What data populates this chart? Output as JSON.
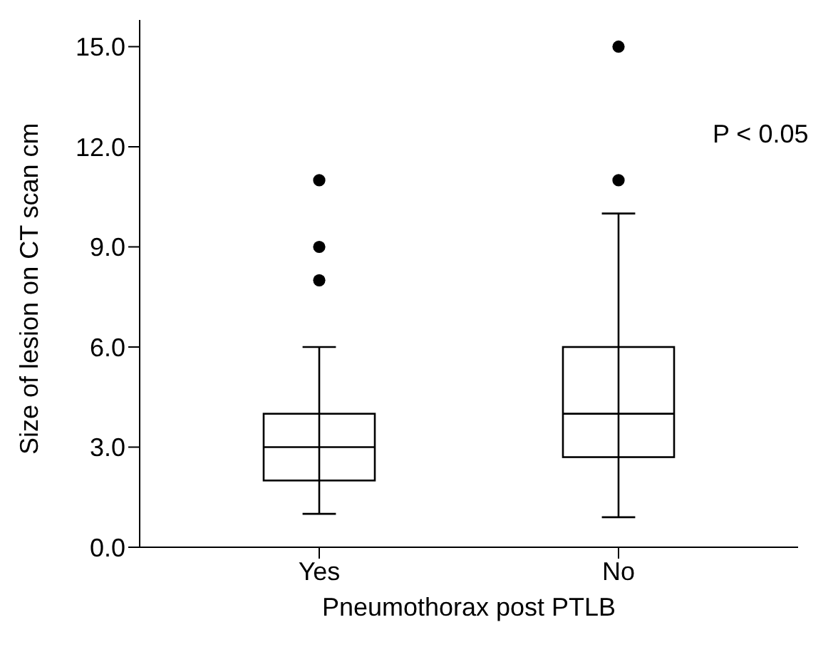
{
  "chart_data": {
    "type": "box",
    "xlabel": "Pneumothorax post PTLB",
    "ylabel": "Size of lesion on CT scan cm",
    "categories": [
      "Yes",
      "No"
    ],
    "boxes": [
      {
        "low": 1.0,
        "q1": 2.0,
        "median": 3.0,
        "q3": 4.0,
        "high": 6.0,
        "outliers": [
          8.0,
          9.0,
          11.0
        ]
      },
      {
        "low": 0.9,
        "q1": 2.7,
        "median": 4.0,
        "q3": 6.0,
        "high": 10.0,
        "outliers": [
          11.0,
          15.0
        ]
      }
    ],
    "color": "#000000",
    "ylim": [
      0,
      15.8
    ],
    "yticks": [
      {
        "value": 0,
        "label": "0.0"
      },
      {
        "value": 3,
        "label": "3.0"
      },
      {
        "value": 6,
        "label": "6.0"
      },
      {
        "value": 9,
        "label": "9.0"
      },
      {
        "value": 12,
        "label": "12.0"
      },
      {
        "value": 15,
        "label": "15.0"
      }
    ],
    "annotations": [
      "P < 0.05"
    ],
    "grid": false,
    "legend": false
  }
}
